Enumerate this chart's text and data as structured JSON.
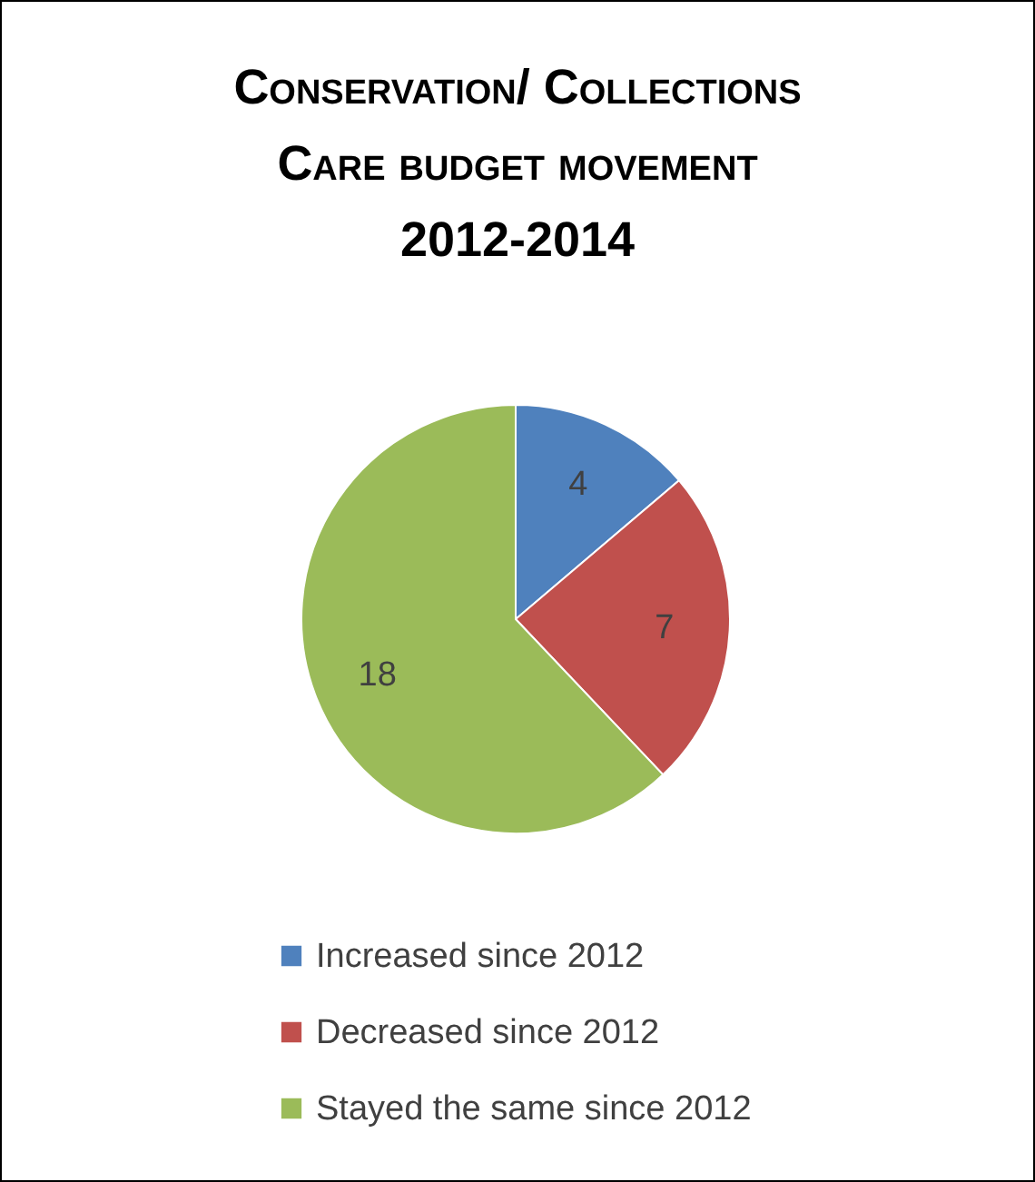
{
  "chart_data": {
    "type": "pie",
    "title": "Conservation/ Collections Care budget movement 2012-2014",
    "categories": [
      "Increased since 2012",
      "Decreased since 2012",
      "Stayed the same since 2012"
    ],
    "values": [
      4,
      7,
      18
    ],
    "colors": [
      "#4f81bd",
      "#c0504d",
      "#9bbb59"
    ],
    "data_labels": true,
    "legend": "bottom"
  }
}
